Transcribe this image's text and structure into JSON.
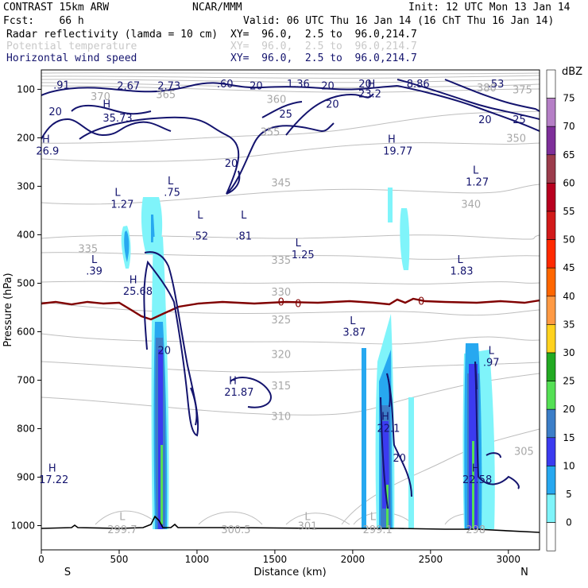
{
  "header": {
    "model": "CONTRAST 15km ARW",
    "org": "NCAR/MMM",
    "init": "Init: 12 UTC Mon 13 Jan 14",
    "fcst": "Fcst:    66 h",
    "valid": "Valid: 06 UTC Thu 16 Jan 14 (16 ChT Thu 16 Jan 14)"
  },
  "fields": [
    {
      "name": "Radar reflectivity (lamda = 10 cm)",
      "xy": "XY=  96.0,  2.5 to  96.0,214.7"
    },
    {
      "name": "Potential temperature",
      "xy": "XY=  96.0,  2.5 to  96.0,214.7"
    },
    {
      "name": "Horizontal wind speed",
      "xy": "XY=  96.0,  2.5 to  96.0,214.7"
    }
  ],
  "colors": {
    "bg": "#ffffff",
    "axis": "#000000",
    "theta": "#bebebe",
    "wind": "#14146e",
    "freezing": "#800000",
    "terrain": "#000000"
  },
  "chart_data": {
    "type": "cross-section",
    "xlabel": "Distance (km)",
    "ylabel": "Pressure (hPa)",
    "xlim": [
      0,
      3200
    ],
    "ylim": [
      1050,
      60
    ],
    "xticks": [
      0,
      500,
      1000,
      1500,
      2000,
      2500,
      3000
    ],
    "yticks": [
      100,
      200,
      300,
      400,
      500,
      600,
      700,
      800,
      900,
      1000
    ],
    "x_end_labels": {
      "left": "S",
      "right": "N"
    },
    "colorbar": {
      "unit": "dBZ",
      "levels": [
        75,
        70,
        65,
        60,
        55,
        50,
        45,
        40,
        35,
        30,
        25,
        20,
        15,
        10,
        5,
        0
      ],
      "colors": [
        "#ffffff",
        "#b57fc6",
        "#7e2f9a",
        "#9c3c4c",
        "#b8001f",
        "#d21a1a",
        "#ff2a00",
        "#ff6600",
        "#ff9a44",
        "#ffd21e",
        "#22aa22",
        "#55e055",
        "#3c7ec8",
        "#3b3bf0",
        "#27a8f0",
        "#7ff4fa",
        "#ffffff"
      ]
    },
    "wind_labels": [
      {
        "text": ".91",
        "x": 130,
        "p": 90
      },
      {
        "text": "2.67",
        "x": 560,
        "p": 92
      },
      {
        "text": "2.73",
        "x": 820,
        "p": 92
      },
      {
        "text": ".60",
        "x": 1180,
        "p": 88
      },
      {
        "text": "20",
        "x": 1380,
        "p": 92
      },
      {
        "text": "1.36",
        "x": 1650,
        "p": 88
      },
      {
        "text": "20",
        "x": 1840,
        "p": 92
      },
      {
        "text": "20",
        "x": 2080,
        "p": 88
      },
      {
        "text": "H",
        "x": 2120,
        "p": 88
      },
      {
        "text": "23.2",
        "x": 2110,
        "p": 108
      },
      {
        "text": "8.86",
        "x": 2420,
        "p": 88
      },
      {
        "text": ".53",
        "x": 2920,
        "p": 88
      },
      {
        "text": "20",
        "x": 90,
        "p": 145
      },
      {
        "text": "H",
        "x": 420,
        "p": 130
      },
      {
        "text": "35.73",
        "x": 490,
        "p": 158
      },
      {
        "text": "25",
        "x": 1570,
        "p": 150
      },
      {
        "text": "20",
        "x": 1870,
        "p": 130
      },
      {
        "text": "20",
        "x": 2850,
        "p": 162
      },
      {
        "text": "25",
        "x": 3070,
        "p": 162
      },
      {
        "text": "20",
        "x": 1220,
        "p": 252
      },
      {
        "text": "H",
        "x": 30,
        "p": 202
      },
      {
        "text": "26.9",
        "x": 40,
        "p": 226
      },
      {
        "text": "H",
        "x": 2250,
        "p": 202
      },
      {
        "text": "19.77",
        "x": 2290,
        "p": 226
      },
      {
        "text": "L",
        "x": 2790,
        "p": 266
      },
      {
        "text": "1.27",
        "x": 2800,
        "p": 290
      },
      {
        "text": "L",
        "x": 830,
        "p": 288
      },
      {
        "text": ".75",
        "x": 840,
        "p": 312
      },
      {
        "text": "L",
        "x": 490,
        "p": 312
      },
      {
        "text": "1.27",
        "x": 520,
        "p": 336
      },
      {
        "text": "L",
        "x": 1020,
        "p": 358
      },
      {
        "text": ".52",
        "x": 1020,
        "p": 402
      },
      {
        "text": "L",
        "x": 1300,
        "p": 358
      },
      {
        "text": ".81",
        "x": 1300,
        "p": 402
      },
      {
        "text": "L",
        "x": 1650,
        "p": 416
      },
      {
        "text": "1.25",
        "x": 1680,
        "p": 440
      },
      {
        "text": "L",
        "x": 340,
        "p": 450
      },
      {
        "text": ".39",
        "x": 340,
        "p": 474
      },
      {
        "text": "L",
        "x": 2690,
        "p": 450
      },
      {
        "text": "1.83",
        "x": 2700,
        "p": 474
      },
      {
        "text": "H",
        "x": 590,
        "p": 492
      },
      {
        "text": "25.68",
        "x": 620,
        "p": 516
      },
      {
        "text": "L",
        "x": 2000,
        "p": 576
      },
      {
        "text": "3.87",
        "x": 2010,
        "p": 600
      },
      {
        "text": "20",
        "x": 790,
        "p": 638
      },
      {
        "text": "L",
        "x": 2890,
        "p": 638
      },
      {
        "text": ".97",
        "x": 2890,
        "p": 662
      },
      {
        "text": "H",
        "x": 1230,
        "p": 700
      },
      {
        "text": "21.87",
        "x": 1270,
        "p": 724
      },
      {
        "text": "H",
        "x": 2210,
        "p": 774
      },
      {
        "text": "22.1",
        "x": 2230,
        "p": 798
      },
      {
        "text": "20",
        "x": 2300,
        "p": 860
      },
      {
        "text": "H",
        "x": 70,
        "p": 880
      },
      {
        "text": "17.22",
        "x": 80,
        "p": 904
      },
      {
        "text": "H",
        "x": 2790,
        "p": 880
      },
      {
        "text": "22.58",
        "x": 2800,
        "p": 904
      }
    ],
    "theta_labels": [
      {
        "text": "370",
        "x": 380,
        "p": 114
      },
      {
        "text": "365",
        "x": 800,
        "p": 110
      },
      {
        "text": "360",
        "x": 1510,
        "p": 120
      },
      {
        "text": "355",
        "x": 1470,
        "p": 187
      },
      {
        "text": "380",
        "x": 2860,
        "p": 96
      },
      {
        "text": "375",
        "x": 3090,
        "p": 100
      },
      {
        "text": "350",
        "x": 3050,
        "p": 200
      },
      {
        "text": "345",
        "x": 1540,
        "p": 292
      },
      {
        "text": "340",
        "x": 2760,
        "p": 336
      },
      {
        "text": "335",
        "x": 300,
        "p": 428
      },
      {
        "text": "335",
        "x": 1540,
        "p": 452
      },
      {
        "text": "330",
        "x": 1540,
        "p": 517
      },
      {
        "text": "325",
        "x": 1540,
        "p": 575
      },
      {
        "text": "320",
        "x": 1540,
        "p": 646
      },
      {
        "text": "315",
        "x": 1540,
        "p": 711
      },
      {
        "text": "310",
        "x": 1540,
        "p": 774
      },
      {
        "text": "305",
        "x": 3100,
        "p": 846
      },
      {
        "text": "L",
        "x": 520,
        "p": 980
      },
      {
        "text": "299.7",
        "x": 520,
        "p": 1007
      },
      {
        "text": "300.5",
        "x": 1250,
        "p": 1007
      },
      {
        "text": "L",
        "x": 1710,
        "p": 980
      },
      {
        "text": "301",
        "x": 1710,
        "p": 1000
      },
      {
        "text": "L",
        "x": 2130,
        "p": 980
      },
      {
        "text": "299.1",
        "x": 2160,
        "p": 1007
      },
      {
        "text": "298",
        "x": 2790,
        "p": 1007
      }
    ],
    "freezing_labels": [
      {
        "text": "0",
        "x": 1540,
        "p": 538
      },
      {
        "text": "0",
        "x": 1650,
        "p": 541
      },
      {
        "text": "0",
        "x": 2440,
        "p": 536
      }
    ]
  }
}
